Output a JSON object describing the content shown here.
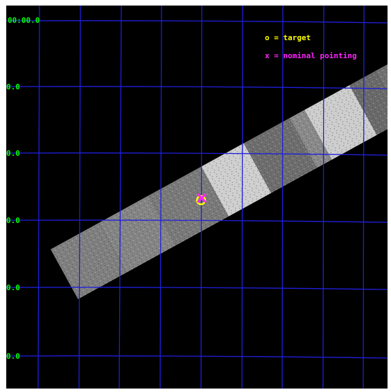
{
  "image": {
    "background": "#000000",
    "grid_color": "#1f1fdd",
    "label_color": "#00ff00"
  },
  "coordinate_labels": {
    "top_left": "00:00.0",
    "row_1": "0.0",
    "row_2": "0.0",
    "row_3": "0.0",
    "row_4": "0.0",
    "row_5": "0.0"
  },
  "legend": {
    "target": {
      "text": "o = target",
      "color": "#ffff00"
    },
    "pointing": {
      "text": "x = nominal pointing",
      "color": "#ff22ff"
    }
  },
  "markers": {
    "target_symbol": "circle-icon",
    "pointing_symbol": "cross-icon"
  }
}
